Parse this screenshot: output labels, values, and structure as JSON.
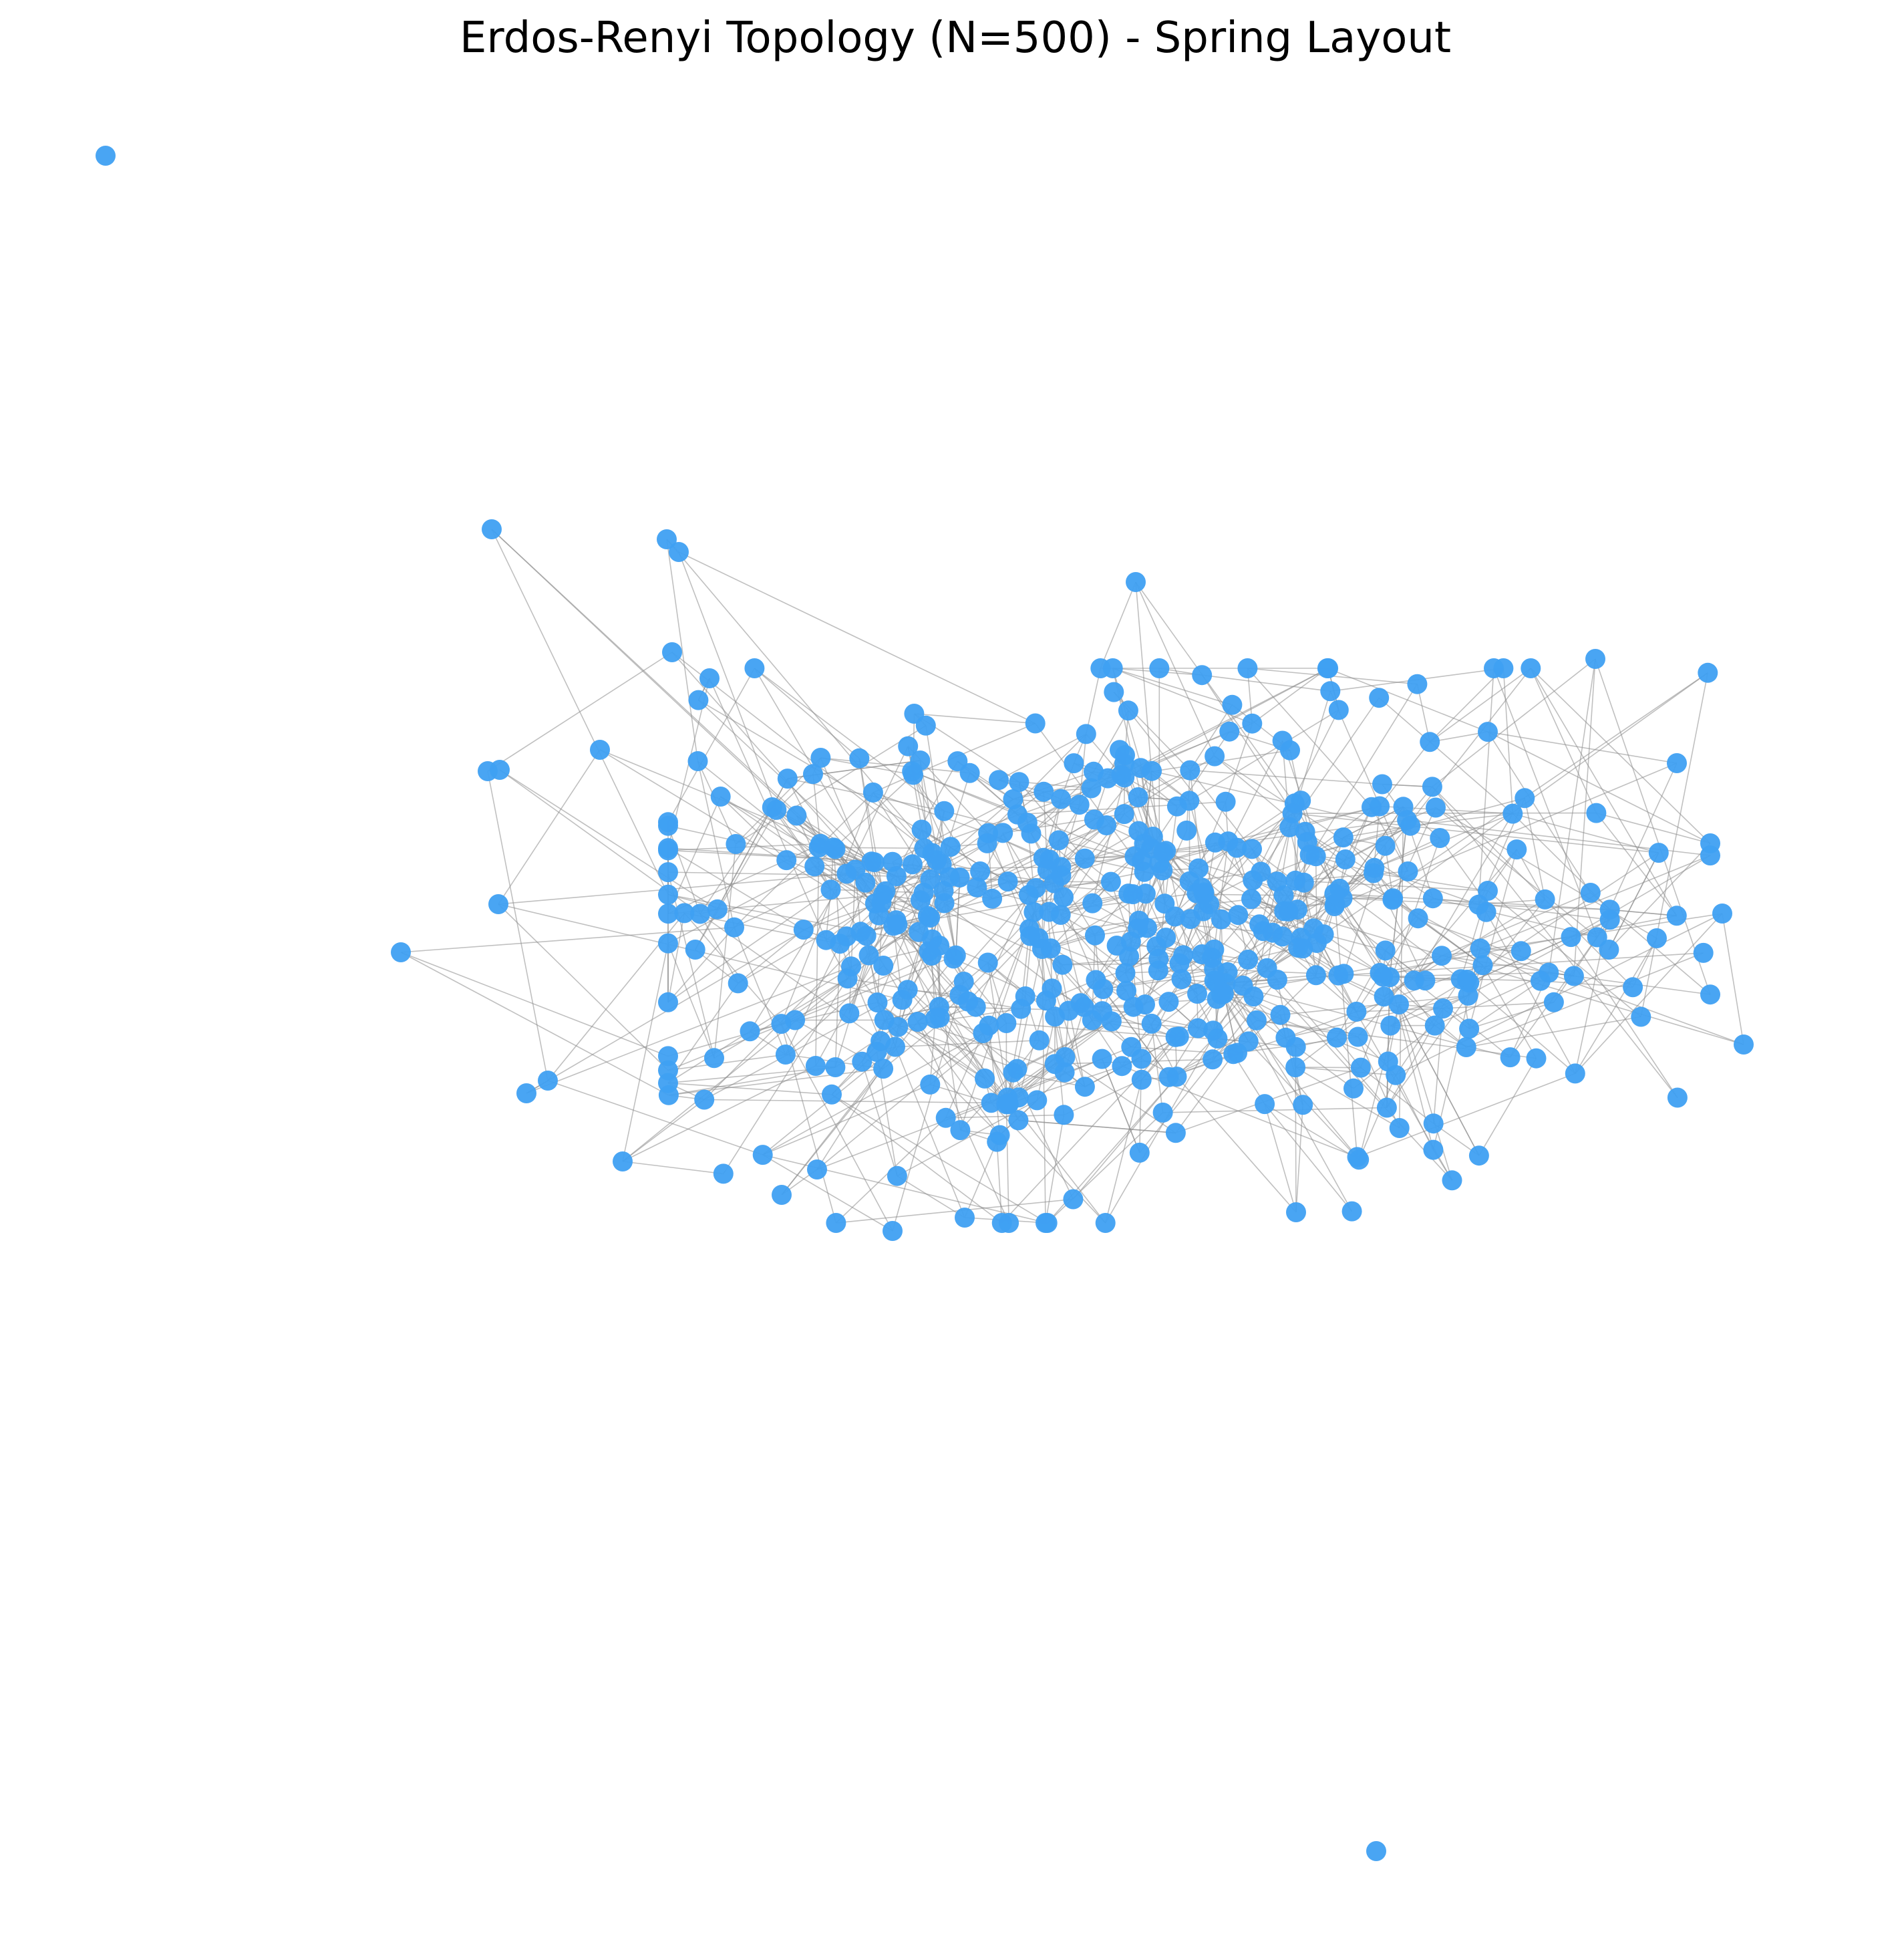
{
  "title": "Erdos-Renyi Topology (N=500) - Spring Layout",
  "graph": {
    "model": "Erdos-Renyi",
    "layout": "spring",
    "node_count": 500,
    "node_color": "#3fa0f2",
    "edge_color": "#8c8c8c"
  }
}
